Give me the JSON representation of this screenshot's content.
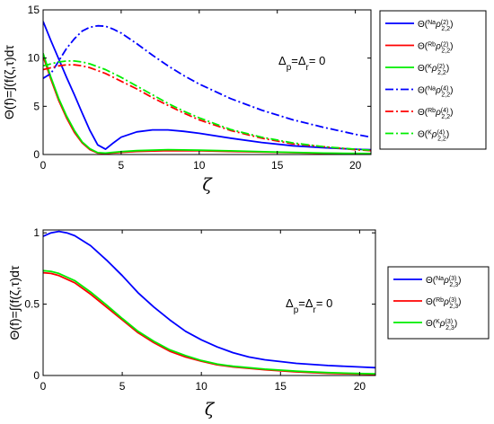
{
  "chart_data": [
    {
      "type": "line",
      "xlabel": "ζ",
      "ylabel": "Θ(f)=∫(f(ζ,τ)dτ",
      "xlim": [
        0,
        21
      ],
      "ylim": [
        0,
        15
      ],
      "xticks": [
        "0",
        "5",
        "10",
        "15",
        "20"
      ],
      "yticks": [
        "0",
        "5",
        "10",
        "15"
      ],
      "annotation": "Δp=Δr= 0",
      "legend_position": "right",
      "series": [
        {
          "name": "Θ(Na ρ(2) 2,2)",
          "color": "#0000ff",
          "style": "solid",
          "x": [
            0,
            0.5,
            1,
            1.5,
            2,
            2.5,
            3,
            3.5,
            4,
            4.5,
            5,
            6,
            7,
            8,
            9,
            10,
            12,
            14,
            16,
            18,
            20,
            21
          ],
          "y": [
            13.8,
            11.8,
            9.9,
            8,
            6.2,
            4.3,
            2.5,
            1.0,
            0.55,
            1.2,
            1.8,
            2.35,
            2.55,
            2.55,
            2.4,
            2.2,
            1.7,
            1.25,
            0.9,
            0.7,
            0.55,
            0.5
          ]
        },
        {
          "name": "Θ(Rb ρ(2) 2,2)",
          "color": "#ff0000",
          "style": "solid",
          "x": [
            0,
            0.5,
            1,
            1.5,
            2,
            2.5,
            3,
            3.5,
            4,
            5,
            6,
            8,
            10,
            12,
            15,
            18,
            21
          ],
          "y": [
            10.2,
            7.8,
            5.6,
            3.8,
            2.3,
            1.2,
            0.5,
            0.15,
            0.1,
            0.22,
            0.32,
            0.4,
            0.38,
            0.32,
            0.22,
            0.12,
            0.08
          ]
        },
        {
          "name": "Θ(K ρ(2) 2,2)",
          "color": "#00ee00",
          "style": "solid",
          "x": [
            0,
            0.5,
            1,
            1.5,
            2,
            2.5,
            3,
            3.5,
            4,
            5,
            6,
            8,
            10,
            12,
            15,
            18,
            21
          ],
          "y": [
            10.5,
            8,
            5.8,
            4,
            2.5,
            1.3,
            0.6,
            0.2,
            0.15,
            0.3,
            0.4,
            0.5,
            0.45,
            0.38,
            0.25,
            0.15,
            0.1
          ]
        },
        {
          "name": "Θ(Na ρ(4) 2,2)",
          "color": "#0000ff",
          "style": "dashdot",
          "x": [
            0,
            0.5,
            1,
            1.5,
            2,
            2.5,
            3,
            3.5,
            4,
            4.5,
            5,
            6,
            7,
            8,
            9,
            10,
            12,
            14,
            16,
            18,
            20,
            21
          ],
          "y": [
            7.9,
            8.4,
            9.7,
            11,
            12,
            12.8,
            13.2,
            13.35,
            13.3,
            13,
            12.6,
            11.5,
            10.3,
            9.2,
            8.2,
            7.3,
            5.8,
            4.6,
            3.6,
            2.8,
            2.1,
            1.8
          ]
        },
        {
          "name": "Θ(Rb ρ(4) 2,2)",
          "color": "#ff0000",
          "style": "dashdot",
          "x": [
            0,
            0.5,
            1,
            1.5,
            2,
            2.5,
            3,
            3.5,
            4,
            5,
            6,
            7,
            8,
            9,
            10,
            12,
            14,
            16,
            18,
            20,
            21
          ],
          "y": [
            8.8,
            9.0,
            9.2,
            9.3,
            9.3,
            9.2,
            9.0,
            8.7,
            8.4,
            7.6,
            6.8,
            5.9,
            5.1,
            4.3,
            3.6,
            2.5,
            1.7,
            1.1,
            0.8,
            0.5,
            0.4
          ]
        },
        {
          "name": "Θ(K ρ(4) 2,2)",
          "color": "#00ee00",
          "style": "dashdot",
          "x": [
            0,
            0.5,
            1,
            1.5,
            2,
            2.5,
            3,
            3.5,
            4,
            5,
            6,
            7,
            8,
            9,
            10,
            12,
            14,
            16,
            18,
            20,
            21
          ],
          "y": [
            9.2,
            9.4,
            9.6,
            9.7,
            9.7,
            9.6,
            9.4,
            9.1,
            8.8,
            8.0,
            7.1,
            6.2,
            5.3,
            4.5,
            3.8,
            2.6,
            1.8,
            1.2,
            0.8,
            0.55,
            0.45
          ]
        }
      ]
    },
    {
      "type": "line",
      "xlabel": "ζ",
      "ylabel": "Θ(f)=∫(f(ζ,τ)dτ",
      "xlim": [
        0,
        21
      ],
      "ylim": [
        0,
        1.02
      ],
      "xticks": [
        "0",
        "5",
        "10",
        "15",
        "20"
      ],
      "yticks": [
        "0",
        "0.5",
        "1"
      ],
      "annotation": "Δp=Δr= 0",
      "legend_position": "right",
      "series": [
        {
          "name": "Θ(Na ρ(3) 2,3)",
          "color": "#0000ff",
          "style": "solid",
          "x": [
            0,
            0.5,
            1,
            1.5,
            2,
            3,
            4,
            5,
            6,
            7,
            8,
            9,
            10,
            11,
            12,
            13,
            14,
            16,
            18,
            20,
            21
          ],
          "y": [
            0.975,
            1.0,
            1.01,
            1.0,
            0.98,
            0.91,
            0.81,
            0.7,
            0.58,
            0.48,
            0.39,
            0.31,
            0.25,
            0.2,
            0.16,
            0.13,
            0.11,
            0.085,
            0.07,
            0.06,
            0.055
          ]
        },
        {
          "name": "Θ(Rb ρ(3) 2,3)",
          "color": "#ff0000",
          "style": "solid",
          "x": [
            0,
            0.5,
            1,
            2,
            3,
            4,
            5,
            6,
            7,
            8,
            9,
            10,
            11,
            12,
            14,
            16,
            18,
            20,
            21
          ],
          "y": [
            0.72,
            0.715,
            0.7,
            0.65,
            0.57,
            0.48,
            0.39,
            0.3,
            0.23,
            0.17,
            0.13,
            0.1,
            0.075,
            0.06,
            0.04,
            0.025,
            0.015,
            0.01,
            0.008
          ]
        },
        {
          "name": "Θ(K ρ(3) 2,3)",
          "color": "#00ee00",
          "style": "solid",
          "x": [
            0,
            0.5,
            1,
            2,
            3,
            4,
            5,
            6,
            7,
            8,
            9,
            10,
            11,
            12,
            14,
            16,
            18,
            20,
            21
          ],
          "y": [
            0.735,
            0.73,
            0.715,
            0.665,
            0.585,
            0.495,
            0.4,
            0.31,
            0.24,
            0.18,
            0.14,
            0.105,
            0.08,
            0.065,
            0.045,
            0.03,
            0.02,
            0.014,
            0.012
          ]
        }
      ]
    }
  ]
}
